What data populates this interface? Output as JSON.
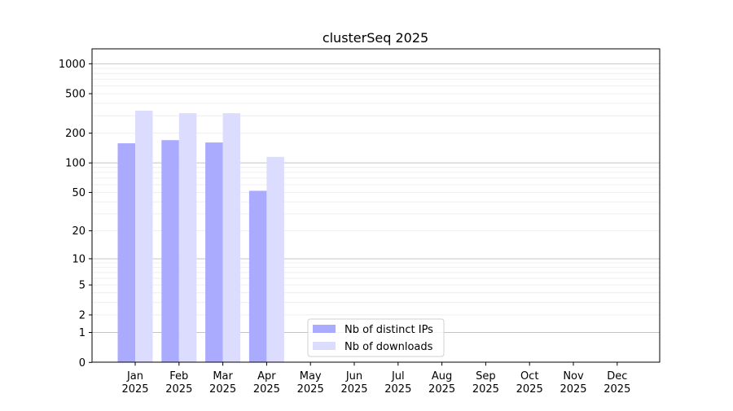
{
  "chart_data": {
    "type": "bar",
    "title": "clusterSeq 2025",
    "xlabel": "",
    "ylabel": "",
    "y_scale": "log(1+y)",
    "ylim": [
      0,
      1400
    ],
    "yticks": [
      0,
      1,
      2,
      5,
      10,
      20,
      50,
      100,
      200,
      500,
      1000
    ],
    "grid": true,
    "legend_position": "lower center",
    "categories": [
      "Jan\n2025",
      "Feb\n2025",
      "Mar\n2025",
      "Apr\n2025",
      "May\n2025",
      "Jun\n2025",
      "Jul\n2025",
      "Aug\n2025",
      "Sep\n2025",
      "Oct\n2025",
      "Nov\n2025",
      "Dec\n2025"
    ],
    "series": [
      {
        "name": "Nb of distinct IPs",
        "color": "#aaaaff",
        "values": [
          158,
          170,
          161,
          52,
          null,
          null,
          null,
          null,
          null,
          null,
          null,
          null
        ]
      },
      {
        "name": "Nb of downloads",
        "color": "#dcdcff",
        "values": [
          337,
          318,
          318,
          115,
          null,
          null,
          null,
          null,
          null,
          null,
          null,
          null
        ]
      }
    ]
  }
}
